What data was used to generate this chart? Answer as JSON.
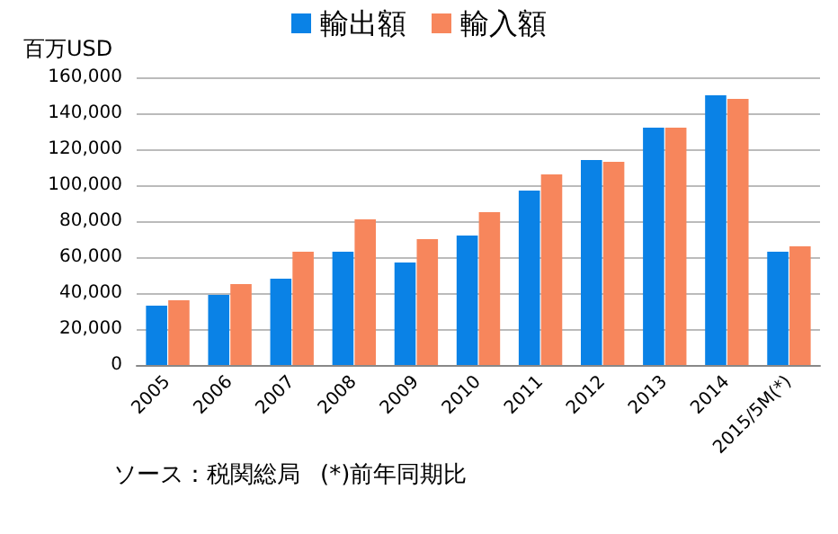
{
  "chart_data": {
    "type": "bar",
    "ylabel": "百万USD",
    "categories": [
      "2005",
      "2006",
      "2007",
      "2008",
      "2009",
      "2010",
      "2011",
      "2012",
      "2013",
      "2014",
      "2015/5M(*)"
    ],
    "series": [
      {
        "name": "輸出額",
        "color": "#0a82e6",
        "values": [
          33000,
          39000,
          48000,
          63000,
          57000,
          72000,
          97000,
          114000,
          132000,
          150000,
          63000
        ]
      },
      {
        "name": "輸入額",
        "color": "#f7865c",
        "values": [
          36000,
          45000,
          63000,
          81000,
          70000,
          85000,
          106000,
          113000,
          132000,
          148000,
          66000
        ]
      }
    ],
    "ylim": [
      0,
      160000
    ],
    "yticks": [
      0,
      {
        "value": 20000,
        "label": "20,000"
      },
      {
        "value": 40000,
        "label": "40,000"
      },
      {
        "value": 60000,
        "label": "60,000"
      },
      {
        "value": 80000,
        "label": "80,000"
      },
      {
        "value": 100000,
        "label": "100,000"
      },
      {
        "value": 120000,
        "label": "120,000"
      },
      {
        "value": 140000,
        "label": "140,000"
      },
      {
        "value": 160000,
        "label": "160,000"
      }
    ],
    "grid": "y",
    "legend": "top",
    "annotations": [
      "ソース：税関総局",
      "(*)前年同期比"
    ]
  }
}
